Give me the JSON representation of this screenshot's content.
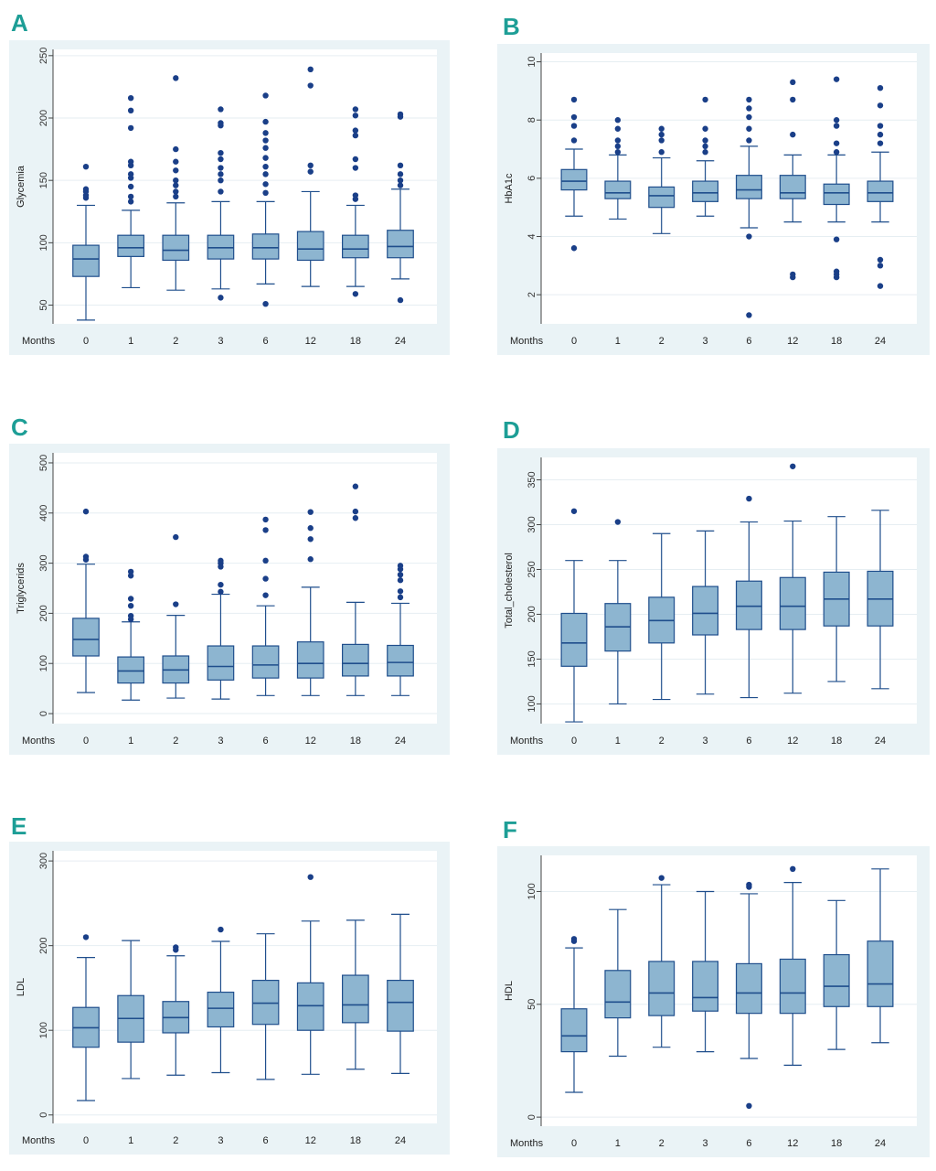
{
  "figure": {
    "background": "#eaf3f6",
    "box_fill": "#8db5d0",
    "box_stroke": "#1f4e8c",
    "dot_color": "#1a3f88",
    "letter_color": "#1d9e96"
  },
  "chart_data": [
    {
      "panel": "A",
      "type": "box",
      "ylabel": "Glycemia",
      "xlabel": "Months",
      "categories": [
        "0",
        "1",
        "2",
        "3",
        "6",
        "12",
        "18",
        "24"
      ],
      "yticks": [
        50,
        100,
        150,
        200,
        250
      ],
      "ylim": [
        35,
        255
      ],
      "boxes": [
        {
          "min": 38,
          "q1": 73,
          "median": 87,
          "q3": 98,
          "max": 130,
          "outliers": [
            136,
            138,
            141,
            143,
            161
          ]
        },
        {
          "min": 64,
          "q1": 89,
          "median": 96,
          "q3": 106,
          "max": 126,
          "outliers": [
            133,
            137,
            145,
            152,
            155,
            162,
            165,
            192,
            206,
            216
          ]
        },
        {
          "min": 62,
          "q1": 86,
          "median": 94,
          "q3": 106,
          "max": 132,
          "outliers": [
            137,
            141,
            146,
            150,
            158,
            165,
            175,
            232
          ]
        },
        {
          "min": 63,
          "q1": 87,
          "median": 96,
          "q3": 106,
          "max": 133,
          "outliers": [
            56,
            141,
            150,
            155,
            160,
            167,
            172,
            194,
            196,
            207
          ]
        },
        {
          "min": 67,
          "q1": 87,
          "median": 96,
          "q3": 107,
          "max": 133,
          "outliers": [
            51,
            140,
            147,
            155,
            161,
            168,
            176,
            182,
            188,
            197,
            218
          ]
        },
        {
          "min": 65,
          "q1": 86,
          "median": 95,
          "q3": 109,
          "max": 141,
          "outliers": [
            157,
            162,
            226,
            239
          ]
        },
        {
          "min": 65,
          "q1": 88,
          "median": 95,
          "q3": 106,
          "max": 130,
          "outliers": [
            59,
            135,
            138,
            160,
            167,
            186,
            190,
            202,
            207
          ]
        },
        {
          "min": 71,
          "q1": 88,
          "median": 97,
          "q3": 110,
          "max": 143,
          "outliers": [
            54,
            146,
            150,
            155,
            162,
            201,
            203
          ]
        }
      ]
    },
    {
      "panel": "B",
      "type": "box",
      "ylabel": "HbA1c",
      "xlabel": "Months",
      "categories": [
        "0",
        "1",
        "2",
        "3",
        "6",
        "12",
        "18",
        "24"
      ],
      "yticks": [
        2,
        4,
        6,
        8,
        10
      ],
      "ylim": [
        1.0,
        10.3
      ],
      "boxes": [
        {
          "min": 4.7,
          "q1": 5.6,
          "median": 5.9,
          "q3": 6.3,
          "max": 7.0,
          "outliers": [
            3.6,
            7.3,
            7.8,
            8.1,
            8.7
          ]
        },
        {
          "min": 4.6,
          "q1": 5.3,
          "median": 5.5,
          "q3": 5.9,
          "max": 6.8,
          "outliers": [
            6.9,
            7.1,
            7.3,
            7.7,
            8.0
          ]
        },
        {
          "min": 4.1,
          "q1": 5.0,
          "median": 5.4,
          "q3": 5.7,
          "max": 6.7,
          "outliers": [
            6.9,
            7.3,
            7.5,
            7.7
          ]
        },
        {
          "min": 4.7,
          "q1": 5.2,
          "median": 5.5,
          "q3": 5.9,
          "max": 6.6,
          "outliers": [
            6.9,
            7.1,
            7.3,
            7.7,
            8.7
          ]
        },
        {
          "min": 4.3,
          "q1": 5.3,
          "median": 5.6,
          "q3": 6.1,
          "max": 7.1,
          "outliers": [
            1.3,
            4.0,
            7.3,
            7.7,
            8.1,
            8.4,
            8.7
          ]
        },
        {
          "min": 4.5,
          "q1": 5.3,
          "median": 5.5,
          "q3": 6.1,
          "max": 6.8,
          "outliers": [
            2.6,
            2.7,
            7.5,
            8.7,
            9.3
          ]
        },
        {
          "min": 4.5,
          "q1": 5.1,
          "median": 5.5,
          "q3": 5.8,
          "max": 6.8,
          "outliers": [
            2.6,
            2.7,
            2.8,
            3.9,
            6.9,
            7.2,
            7.8,
            8.0,
            9.4
          ]
        },
        {
          "min": 4.5,
          "q1": 5.2,
          "median": 5.5,
          "q3": 5.9,
          "max": 6.9,
          "outliers": [
            2.3,
            3.0,
            3.2,
            7.2,
            7.5,
            7.8,
            8.5,
            9.1
          ]
        }
      ]
    },
    {
      "panel": "C",
      "type": "box",
      "ylabel": "Triglycerids",
      "xlabel": "Months",
      "categories": [
        "0",
        "1",
        "2",
        "3",
        "6",
        "12",
        "18",
        "24"
      ],
      "yticks": [
        0,
        100,
        200,
        300,
        400,
        500
      ],
      "ylim": [
        -20,
        520
      ],
      "boxes": [
        {
          "min": 42,
          "q1": 115,
          "median": 148,
          "q3": 190,
          "max": 298,
          "outliers": [
            307,
            313,
            403
          ]
        },
        {
          "min": 27,
          "q1": 61,
          "median": 85,
          "q3": 113,
          "max": 183,
          "outliers": [
            188,
            195,
            215,
            229,
            275,
            283
          ]
        },
        {
          "min": 31,
          "q1": 61,
          "median": 87,
          "q3": 115,
          "max": 196,
          "outliers": [
            218,
            352
          ]
        },
        {
          "min": 29,
          "q1": 67,
          "median": 94,
          "q3": 135,
          "max": 238,
          "outliers": [
            243,
            257,
            293,
            300,
            305
          ]
        },
        {
          "min": 36,
          "q1": 71,
          "median": 97,
          "q3": 135,
          "max": 215,
          "outliers": [
            236,
            269,
            305,
            366,
            387
          ]
        },
        {
          "min": 36,
          "q1": 71,
          "median": 100,
          "q3": 143,
          "max": 252,
          "outliers": [
            308,
            348,
            370,
            402
          ]
        },
        {
          "min": 36,
          "q1": 75,
          "median": 100,
          "q3": 138,
          "max": 222,
          "outliers": [
            390,
            403,
            453
          ]
        },
        {
          "min": 36,
          "q1": 75,
          "median": 102,
          "q3": 136,
          "max": 220,
          "outliers": [
            232,
            244,
            266,
            277,
            288,
            295
          ]
        }
      ]
    },
    {
      "panel": "D",
      "type": "box",
      "ylabel": "Total_cholesterol",
      "xlabel": "Months",
      "categories": [
        "0",
        "1",
        "2",
        "3",
        "6",
        "12",
        "18",
        "24"
      ],
      "yticks": [
        100,
        150,
        200,
        250,
        300,
        350
      ],
      "ylim": [
        78,
        375
      ],
      "boxes": [
        {
          "min": 80,
          "q1": 142,
          "median": 168,
          "q3": 201,
          "max": 260,
          "outliers": [
            315
          ]
        },
        {
          "min": 100,
          "q1": 159,
          "median": 186,
          "q3": 212,
          "max": 260,
          "outliers": [
            303
          ]
        },
        {
          "min": 105,
          "q1": 168,
          "median": 193,
          "q3": 219,
          "max": 290,
          "outliers": []
        },
        {
          "min": 111,
          "q1": 177,
          "median": 201,
          "q3": 231,
          "max": 293,
          "outliers": []
        },
        {
          "min": 107,
          "q1": 183,
          "median": 209,
          "q3": 237,
          "max": 303,
          "outliers": [
            329
          ]
        },
        {
          "min": 112,
          "q1": 183,
          "median": 209,
          "q3": 241,
          "max": 304,
          "outliers": [
            365
          ]
        },
        {
          "min": 125,
          "q1": 187,
          "median": 217,
          "q3": 247,
          "max": 309,
          "outliers": []
        },
        {
          "min": 117,
          "q1": 187,
          "median": 217,
          "q3": 248,
          "max": 316,
          "outliers": []
        }
      ]
    },
    {
      "panel": "E",
      "type": "box",
      "ylabel": "LDL",
      "xlabel": "Months",
      "categories": [
        "0",
        "1",
        "2",
        "3",
        "6",
        "12",
        "18",
        "24"
      ],
      "yticks": [
        0,
        100,
        200,
        300
      ],
      "ylim": [
        -10,
        312
      ],
      "boxes": [
        {
          "min": 17,
          "q1": 80,
          "median": 103,
          "q3": 127,
          "max": 186,
          "outliers": [
            210
          ]
        },
        {
          "min": 43,
          "q1": 86,
          "median": 114,
          "q3": 141,
          "max": 206,
          "outliers": []
        },
        {
          "min": 47,
          "q1": 97,
          "median": 115,
          "q3": 134,
          "max": 188,
          "outliers": [
            195,
            198
          ]
        },
        {
          "min": 50,
          "q1": 104,
          "median": 126,
          "q3": 145,
          "max": 205,
          "outliers": [
            219
          ]
        },
        {
          "min": 42,
          "q1": 107,
          "median": 132,
          "q3": 159,
          "max": 214,
          "outliers": []
        },
        {
          "min": 48,
          "q1": 100,
          "median": 129,
          "q3": 156,
          "max": 229,
          "outliers": [
            281
          ]
        },
        {
          "min": 54,
          "q1": 109,
          "median": 130,
          "q3": 165,
          "max": 230,
          "outliers": []
        },
        {
          "min": 49,
          "q1": 99,
          "median": 133,
          "q3": 159,
          "max": 237,
          "outliers": []
        }
      ]
    },
    {
      "panel": "F",
      "type": "box",
      "ylabel": "HDL",
      "xlabel": "Months",
      "categories": [
        "0",
        "1",
        "2",
        "3",
        "6",
        "12",
        "18",
        "24"
      ],
      "yticks": [
        0,
        50,
        100
      ],
      "ylim": [
        -4,
        116
      ],
      "boxes": [
        {
          "min": 11,
          "q1": 29,
          "median": 36,
          "q3": 48,
          "max": 75,
          "outliers": [
            78,
            79
          ]
        },
        {
          "min": 27,
          "q1": 44,
          "median": 51,
          "q3": 65,
          "max": 92,
          "outliers": []
        },
        {
          "min": 31,
          "q1": 45,
          "median": 55,
          "q3": 69,
          "max": 103,
          "outliers": [
            106
          ]
        },
        {
          "min": 29,
          "q1": 47,
          "median": 53,
          "q3": 69,
          "max": 100,
          "outliers": []
        },
        {
          "min": 26,
          "q1": 46,
          "median": 55,
          "q3": 68,
          "max": 99,
          "outliers": [
            5,
            102,
            103
          ]
        },
        {
          "min": 23,
          "q1": 46,
          "median": 55,
          "q3": 70,
          "max": 104,
          "outliers": [
            110
          ]
        },
        {
          "min": 30,
          "q1": 49,
          "median": 58,
          "q3": 72,
          "max": 96,
          "outliers": []
        },
        {
          "min": 33,
          "q1": 49,
          "median": 59,
          "q3": 78,
          "max": 110,
          "outliers": []
        }
      ]
    }
  ]
}
